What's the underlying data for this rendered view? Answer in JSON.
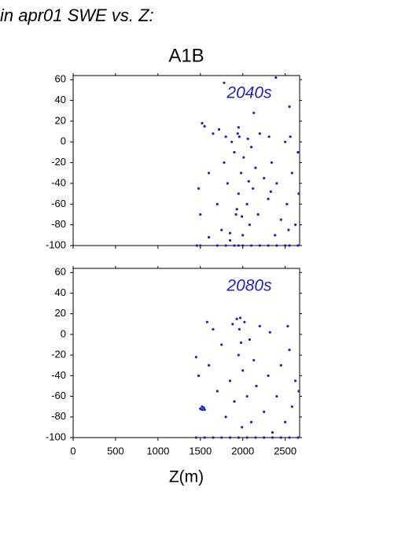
{
  "page_title": "in apr01 SWE vs. Z:",
  "scenario": "A1B",
  "chart_data": [
    {
      "type": "scatter",
      "annotation": "2040s",
      "color": "#2222bb",
      "xlim": [
        0,
        2670
      ],
      "ylim": [
        -100,
        64
      ],
      "yticks": [
        -100,
        -80,
        -60,
        -40,
        -20,
        0,
        20,
        40,
        60
      ],
      "x": [
        1780,
        1950,
        2130,
        2390,
        2550,
        1480,
        1500,
        1520,
        1550,
        1600,
        1650,
        1700,
        1720,
        1750,
        1780,
        1800,
        1820,
        1850,
        1870,
        1900,
        1920,
        1940,
        1950,
        1960,
        1980,
        2000,
        2010,
        2050,
        2060,
        2080,
        2100,
        2120,
        2150,
        2180,
        2200,
        2250,
        2300,
        2310,
        2340,
        2380,
        2400,
        2450,
        2500,
        2520,
        2540,
        2560,
        2580,
        2620,
        2650,
        2660,
        1460,
        1500,
        1700,
        1800,
        1900,
        1950,
        2000,
        2100,
        2200,
        2300,
        2400,
        2500,
        2550,
        2650,
        1600,
        1850,
        1930,
        1990,
        2070,
        2330
      ],
      "values": [
        57,
        14,
        28,
        62,
        34,
        -45,
        -70,
        18,
        15,
        -30,
        8,
        -60,
        12,
        -85,
        -20,
        5,
        -40,
        -95,
        0,
        -10,
        -70,
        8,
        -50,
        5,
        -30,
        -90,
        -15,
        -60,
        3,
        -80,
        -5,
        -45,
        -25,
        -70,
        8,
        -35,
        -55,
        5,
        -20,
        -90,
        -40,
        -75,
        0,
        -60,
        -85,
        5,
        -30,
        -80,
        -10,
        -50,
        -100,
        -100,
        -100,
        -100,
        -100,
        -100,
        -100,
        -100,
        -100,
        -100,
        -100,
        -100,
        -100,
        -100,
        -92,
        -88,
        -65,
        -72,
        -38,
        -48
      ]
    },
    {
      "type": "scatter",
      "annotation": "2080s",
      "color": "#2222bb",
      "xlim": [
        0,
        2670
      ],
      "ylim": [
        -100,
        64
      ],
      "xticks": [
        0,
        500,
        1000,
        1500,
        2000,
        2500
      ],
      "yticks": [
        -100,
        -80,
        -60,
        -40,
        -20,
        0,
        20,
        40,
        60
      ],
      "xlabel": "Z(m)",
      "x": [
        1450,
        1480,
        1500,
        1520,
        1550,
        1580,
        1600,
        1650,
        1700,
        1750,
        1800,
        1850,
        1880,
        1900,
        1930,
        1950,
        1970,
        1990,
        2000,
        2020,
        2050,
        2080,
        2100,
        2130,
        2160,
        2200,
        2250,
        2300,
        2320,
        2350,
        2400,
        2450,
        2500,
        2530,
        2550,
        2580,
        2620,
        2660,
        1450,
        1550,
        1650,
        1750,
        1850,
        1950,
        2050,
        2150,
        2250,
        2350,
        2450,
        2550,
        2650,
        1500,
        1520,
        1540,
        1960,
        1980
      ],
      "values": [
        -22,
        -40,
        -72,
        -70,
        -73,
        12,
        -30,
        5,
        -55,
        -10,
        -80,
        -45,
        10,
        -65,
        15,
        -20,
        16,
        -90,
        -35,
        12,
        -60,
        -5,
        -85,
        -25,
        -50,
        8,
        -75,
        -40,
        2,
        -95,
        -60,
        -30,
        -85,
        8,
        -15,
        -70,
        -45,
        -55,
        -100,
        -100,
        -100,
        -100,
        -100,
        -100,
        -100,
        -100,
        -100,
        -100,
        -100,
        -100,
        -100,
        -72,
        -73,
        -71,
        5,
        -8
      ]
    }
  ]
}
